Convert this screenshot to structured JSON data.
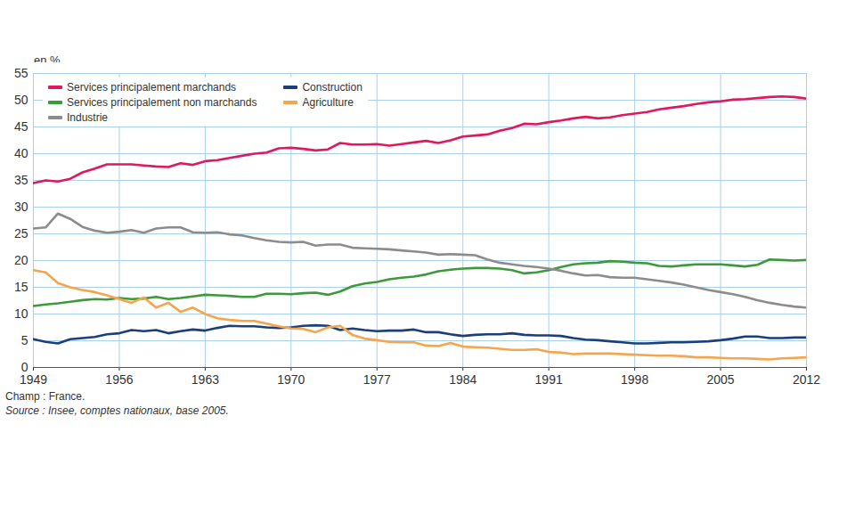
{
  "chart_data": {
    "type": "line",
    "y_label": "en %",
    "note": "Champ : France.",
    "source": "Source : Insee, comptes nationaux, base 2005.",
    "x": [
      1949,
      1950,
      1951,
      1952,
      1953,
      1954,
      1955,
      1956,
      1957,
      1958,
      1959,
      1960,
      1961,
      1962,
      1963,
      1964,
      1965,
      1966,
      1967,
      1968,
      1969,
      1970,
      1971,
      1972,
      1973,
      1974,
      1975,
      1976,
      1977,
      1978,
      1979,
      1980,
      1981,
      1982,
      1983,
      1984,
      1985,
      1986,
      1987,
      1988,
      1989,
      1990,
      1991,
      1992,
      1993,
      1994,
      1995,
      1996,
      1997,
      1998,
      1999,
      2000,
      2001,
      2002,
      2003,
      2004,
      2005,
      2006,
      2007,
      2008,
      2009,
      2010,
      2011,
      2012
    ],
    "series": [
      {
        "name": "Services principalement marchands",
        "color": "#e2185f",
        "values": [
          34.5,
          35,
          34.8,
          35.3,
          36.5,
          37.2,
          38,
          38,
          38,
          37.8,
          37.6,
          37.5,
          38.2,
          37.9,
          38.6,
          38.8,
          39.2,
          39.6,
          40,
          40.2,
          41,
          41.1,
          40.9,
          40.6,
          40.8,
          42,
          41.7,
          41.7,
          41.8,
          41.5,
          41.8,
          42.1,
          42.4,
          42,
          42.5,
          43.2,
          43.4,
          43.6,
          44.3,
          44.8,
          45.6,
          45.5,
          45.9,
          46.2,
          46.6,
          46.9,
          46.6,
          46.8,
          47.2,
          47.5,
          47.8,
          48.3,
          48.6,
          48.9,
          49.3,
          49.6,
          49.8,
          50.1,
          50.2,
          50.4,
          50.6,
          50.7,
          50.6,
          50.3
        ]
      },
      {
        "name": "Services principalement non marchands",
        "color": "#3d9a3a",
        "values": [
          11.5,
          11.8,
          12,
          12.3,
          12.6,
          12.8,
          12.7,
          13,
          12.8,
          12.9,
          13.2,
          12.8,
          13,
          13.3,
          13.6,
          13.5,
          13.4,
          13.2,
          13.2,
          13.8,
          13.8,
          13.7,
          13.9,
          14,
          13.6,
          14.2,
          15.2,
          15.7,
          16,
          16.5,
          16.8,
          17,
          17.4,
          18,
          18.3,
          18.5,
          18.6,
          18.6,
          18.5,
          18.2,
          17.6,
          17.8,
          18.2,
          18.8,
          19.3,
          19.5,
          19.6,
          19.9,
          19.8,
          19.6,
          19.5,
          19,
          18.9,
          19.1,
          19.3,
          19.3,
          19.3,
          19.1,
          18.9,
          19.2,
          20.2,
          20.1,
          20,
          20.1
        ]
      },
      {
        "name": "Industrie",
        "color": "#8c8c8c",
        "values": [
          26,
          26.2,
          28.8,
          27.8,
          26.3,
          25.6,
          25.2,
          25.4,
          25.7,
          25.2,
          26,
          26.2,
          26.2,
          25.3,
          25.2,
          25.3,
          24.9,
          24.7,
          24.2,
          23.8,
          23.5,
          23.4,
          23.5,
          22.8,
          23,
          23,
          22.4,
          22.3,
          22.2,
          22.1,
          21.9,
          21.7,
          21.5,
          21.1,
          21.2,
          21.1,
          21,
          20.2,
          19.6,
          19.3,
          19,
          18.8,
          18.5,
          18.1,
          17.6,
          17.2,
          17.3,
          16.9,
          16.8,
          16.8,
          16.5,
          16.2,
          15.9,
          15.5,
          15,
          14.5,
          14.1,
          13.7,
          13.2,
          12.6,
          12.1,
          11.7,
          11.4,
          11.2
        ]
      },
      {
        "name": "Construction",
        "color": "#1b3f7c",
        "values": [
          5.3,
          4.8,
          4.5,
          5.3,
          5.5,
          5.7,
          6.2,
          6.4,
          7,
          6.8,
          7,
          6.4,
          6.8,
          7.1,
          6.9,
          7.4,
          7.8,
          7.7,
          7.7,
          7.5,
          7.4,
          7.5,
          7.8,
          7.9,
          7.8,
          7,
          7.3,
          7,
          6.8,
          6.9,
          6.9,
          7.1,
          6.6,
          6.6,
          6.2,
          5.9,
          6.1,
          6.2,
          6.2,
          6.4,
          6.1,
          6,
          6,
          5.9,
          5.5,
          5.2,
          5.1,
          4.9,
          4.7,
          4.5,
          4.5,
          4.6,
          4.7,
          4.7,
          4.8,
          4.9,
          5.1,
          5.4,
          5.8,
          5.8,
          5.5,
          5.5,
          5.6,
          5.6
        ]
      },
      {
        "name": "Agriculture",
        "color": "#f6a54c",
        "values": [
          18.2,
          17.8,
          15.8,
          15,
          14.5,
          14.1,
          13.5,
          12.8,
          12.1,
          13.1,
          11.2,
          12.1,
          10.4,
          11.2,
          10,
          9.2,
          8.9,
          8.7,
          8.7,
          8.2,
          7.7,
          7.3,
          7.2,
          6.6,
          7.5,
          7.8,
          6.1,
          5.4,
          5.1,
          4.8,
          4.7,
          4.7,
          4.1,
          4,
          4.6,
          3.9,
          3.8,
          3.7,
          3.5,
          3.3,
          3.3,
          3.4,
          2.9,
          2.8,
          2.5,
          2.6,
          2.6,
          2.6,
          2.5,
          2.4,
          2.3,
          2.2,
          2.2,
          2.1,
          1.9,
          1.9,
          1.8,
          1.7,
          1.7,
          1.6,
          1.5,
          1.7,
          1.8,
          1.9
        ]
      }
    ],
    "xlim": [
      1949,
      2012
    ],
    "xticks": [
      1949,
      1956,
      1963,
      1970,
      1977,
      1984,
      1991,
      1998,
      2005,
      2012
    ],
    "ylim": [
      0,
      55
    ],
    "yticks": [
      0,
      5,
      10,
      15,
      20,
      25,
      30,
      35,
      40,
      45,
      50,
      55
    ],
    "grid": true,
    "legend": "top-left"
  }
}
